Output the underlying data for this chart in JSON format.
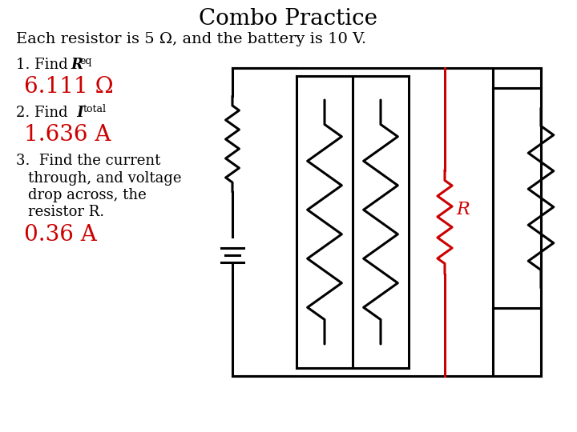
{
  "title": "Combo Practice",
  "subtitle": "Each resistor is 5 Ω, and the battery is 10 V.",
  "q1_ans": "6.111 Ω",
  "q2_ans": "1.636 A",
  "q3_ans": "0.36 A",
  "bg_color": "#ffffff",
  "text_color": "#000000",
  "ans_color": "#cc0000",
  "circuit_color": "#000000",
  "resistor_R_color": "#cc0000",
  "title_fontsize": 20,
  "subtitle_fontsize": 14,
  "label_fontsize": 13,
  "ans_fontsize": 20
}
